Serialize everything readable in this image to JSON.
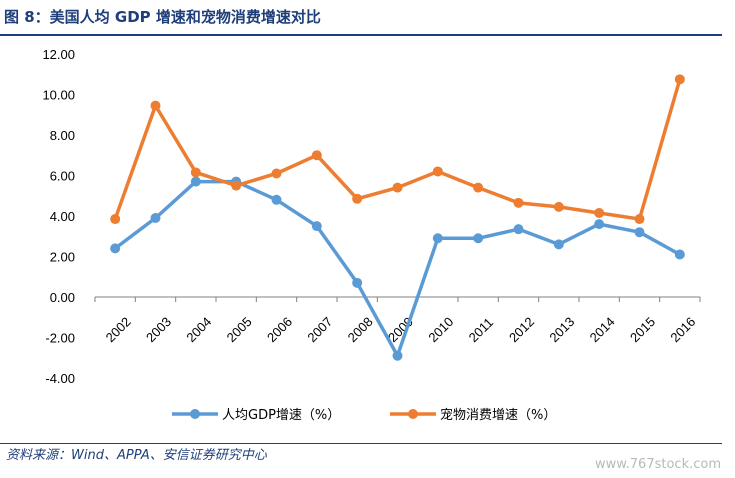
{
  "header": {
    "title": "图 8：美国人均 GDP 增速和宠物消费增速对比"
  },
  "footer": {
    "source": "资料来源：Wind、APPA、安信证券研究中心",
    "watermark": "www.767stock.com"
  },
  "colors": {
    "gdp": "#5b9bd5",
    "pet": "#ed7d31",
    "title": "#1f3f7a",
    "axis": "#808080"
  },
  "chart_data": {
    "type": "line",
    "title": "",
    "xlabel": "",
    "ylabel": "",
    "categories": [
      "2002",
      "2003",
      "2004",
      "2005",
      "2006",
      "2007",
      "2008",
      "2009",
      "2010",
      "2011",
      "2012",
      "2013",
      "2014",
      "2015",
      "2016"
    ],
    "ylim": [
      -4,
      12
    ],
    "yticks": [
      "12.00",
      "10.00",
      "8.00",
      "6.00",
      "4.00",
      "2.00",
      "0.00",
      "-2.00",
      "-4.00"
    ],
    "yticks_values": [
      12,
      10,
      8,
      6,
      4,
      2,
      0,
      -2,
      -4
    ],
    "grid": false,
    "legend_position": "bottom",
    "series": [
      {
        "name": "人均GDP增速（%）",
        "values": [
          2.4,
          3.9,
          5.7,
          5.7,
          4.8,
          3.5,
          0.7,
          -2.9,
          2.9,
          2.9,
          3.35,
          2.6,
          3.6,
          3.2,
          2.1
        ]
      },
      {
        "name": "宠物消费增速（%）",
        "values": [
          3.85,
          9.45,
          6.15,
          5.5,
          6.1,
          7.0,
          4.85,
          5.4,
          6.2,
          5.4,
          4.65,
          4.45,
          4.15,
          3.85,
          10.75
        ]
      }
    ]
  }
}
